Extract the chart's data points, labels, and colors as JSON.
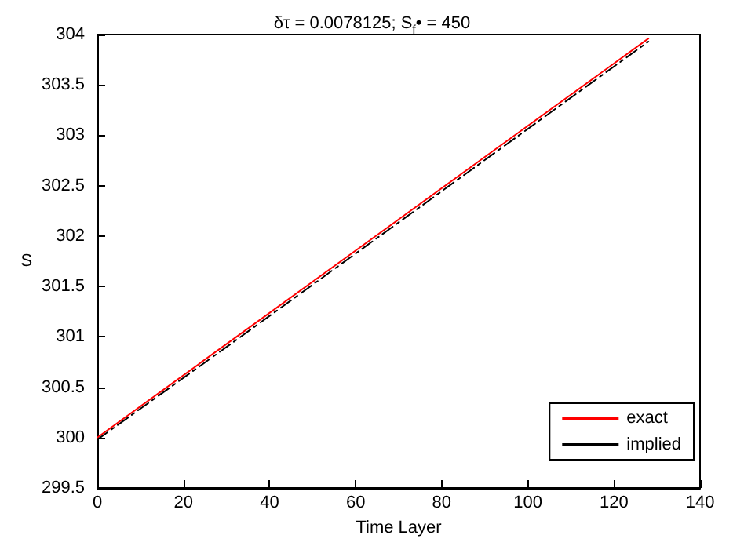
{
  "chart_data": {
    "type": "line",
    "title": "δτ = 0.0078125; S$_{f}$• = 450",
    "xlabel": "Time Layer",
    "ylabel": "S",
    "x": [
      0,
      32,
      64,
      96,
      128
    ],
    "series": [
      {
        "name": "exact",
        "color": "#ff0000",
        "line_style": "solid",
        "values": [
          300.0,
          300.99,
          301.98,
          302.97,
          303.96
        ]
      },
      {
        "name": "implied",
        "color": "#000000",
        "line_style": "dashdot",
        "values": [
          299.98,
          300.96,
          301.95,
          302.94,
          303.93
        ]
      }
    ],
    "xlim": [
      0,
      140
    ],
    "xticks": [
      0,
      20,
      40,
      60,
      80,
      100,
      120,
      140
    ],
    "ylim": [
      299.5,
      304
    ],
    "yticks": [
      299.5,
      300,
      300.5,
      301,
      301.5,
      302,
      302.5,
      303,
      303.5,
      304
    ],
    "grid": false,
    "legend": "bottom right",
    "marker": "none"
  }
}
